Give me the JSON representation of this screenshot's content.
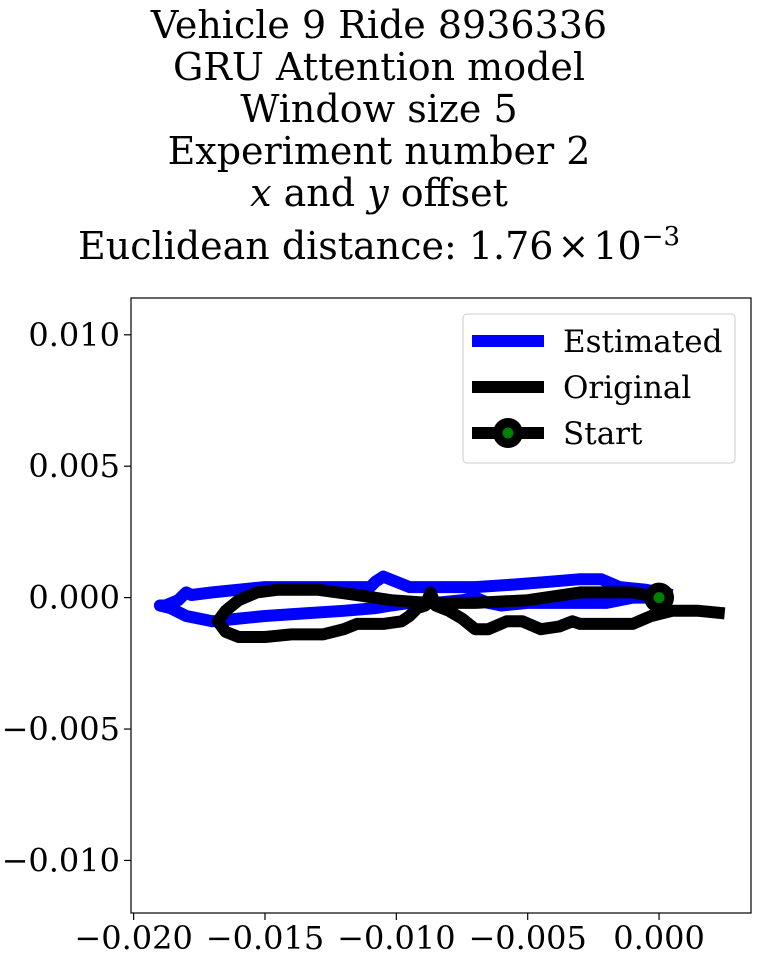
{
  "chart_data": {
    "type": "line",
    "title_lines": [
      "Vehicle 9 Ride 8936336",
      "GRU Attention model",
      "Window size 5",
      "Experiment number 2"
    ],
    "title_offset_line": {
      "x": "x",
      "and": " and ",
      "y": "y",
      "rest": " offset"
    },
    "title_distance": {
      "prefix": "Euclidean distance: ",
      "mantissa": "1.76",
      "times": "×",
      "base": "10",
      "exponent": "−3"
    },
    "xlabel": "",
    "ylabel": "",
    "xlim": [
      -0.0201,
      0.0035
    ],
    "ylim": [
      -0.012,
      0.0114
    ],
    "xticks": [
      -0.02,
      -0.015,
      -0.01,
      -0.005,
      0.0
    ],
    "xtick_labels": [
      "−0.020",
      "−0.015",
      "−0.010",
      "−0.005",
      "0.000"
    ],
    "yticks": [
      0.01,
      0.005,
      0.0,
      -0.005,
      -0.01
    ],
    "ytick_labels": [
      "0.010",
      "0.005",
      "0.000",
      "−0.005",
      "−0.010"
    ],
    "grid": false,
    "legend_position": "upper right",
    "series": [
      {
        "name": "Estimated",
        "color": "#0000ff",
        "points": [
          [
            0.0005,
            0.0001
          ],
          [
            -0.0005,
            0.0003
          ],
          [
            -0.0015,
            0.0004
          ],
          [
            -0.0022,
            0.0007
          ],
          [
            -0.003,
            0.0007
          ],
          [
            -0.0042,
            0.0006
          ],
          [
            -0.0055,
            0.0005
          ],
          [
            -0.007,
            0.0004
          ],
          [
            -0.009,
            0.0004
          ],
          [
            -0.0095,
            0.0004
          ],
          [
            -0.0105,
            0.0008
          ],
          [
            -0.0108,
            0.0006
          ],
          [
            -0.011,
            0.0004
          ],
          [
            -0.013,
            0.0004
          ],
          [
            -0.015,
            0.0004
          ],
          [
            -0.016,
            0.0003
          ],
          [
            -0.017,
            0.0002
          ],
          [
            -0.0178,
            0.0001
          ],
          [
            -0.018,
            0.0002
          ],
          [
            -0.0183,
            -0.0001
          ],
          [
            -0.0188,
            -0.0003
          ],
          [
            -0.019,
            -0.0003
          ],
          [
            -0.0186,
            -0.0004
          ],
          [
            -0.018,
            -0.0007
          ],
          [
            -0.017,
            -0.0009
          ],
          [
            -0.016,
            -0.0008
          ],
          [
            -0.015,
            -0.0007
          ],
          [
            -0.0135,
            -0.0006
          ],
          [
            -0.012,
            -0.0005
          ],
          [
            -0.0108,
            -0.0004
          ],
          [
            -0.0102,
            -0.0003
          ],
          [
            -0.0095,
            -0.0002
          ],
          [
            -0.0085,
            -0.0002
          ],
          [
            -0.0075,
            -0.0001
          ],
          [
            -0.007,
            0.0
          ],
          [
            -0.0065,
            -0.0002
          ],
          [
            -0.006,
            -0.0003
          ],
          [
            -0.005,
            -0.0002
          ],
          [
            -0.004,
            -0.0002
          ],
          [
            -0.003,
            -0.0002
          ],
          [
            -0.002,
            -0.0002
          ],
          [
            -0.001,
            0.0
          ],
          [
            0.0,
            0.0
          ],
          [
            0.0005,
            0.0001
          ]
        ]
      },
      {
        "name": "Original",
        "color": "#000000",
        "points": [
          [
            0.0025,
            -0.0006
          ],
          [
            0.0015,
            -0.0005
          ],
          [
            0.001,
            -0.0005
          ],
          [
            0.0005,
            -0.0005
          ],
          [
            -0.0003,
            -0.0007
          ],
          [
            -0.001,
            -0.001
          ],
          [
            -0.002,
            -0.001
          ],
          [
            -0.003,
            -0.001
          ],
          [
            -0.0033,
            -0.0009
          ],
          [
            -0.0038,
            -0.0011
          ],
          [
            -0.0045,
            -0.0012
          ],
          [
            -0.0052,
            -0.0009
          ],
          [
            -0.0058,
            -0.0009
          ],
          [
            -0.0065,
            -0.0012
          ],
          [
            -0.007,
            -0.0012
          ],
          [
            -0.0075,
            -0.0008
          ],
          [
            -0.008,
            -0.0005
          ],
          [
            -0.0085,
            -0.0003
          ],
          [
            -0.0087,
            0.0002
          ],
          [
            -0.0089,
            -0.0003
          ],
          [
            -0.0092,
            -0.0004
          ],
          [
            -0.0095,
            -0.0007
          ],
          [
            -0.0098,
            -0.0009
          ],
          [
            -0.0105,
            -0.001
          ],
          [
            -0.0115,
            -0.001
          ],
          [
            -0.012,
            -0.0012
          ],
          [
            -0.0128,
            -0.0014
          ],
          [
            -0.014,
            -0.0014
          ],
          [
            -0.015,
            -0.0015
          ],
          [
            -0.016,
            -0.0015
          ],
          [
            -0.0165,
            -0.0013
          ],
          [
            -0.0168,
            -0.0009
          ],
          [
            -0.0165,
            -0.0005
          ],
          [
            -0.016,
            -0.0001
          ],
          [
            -0.0153,
            0.0002
          ],
          [
            -0.0145,
            0.0003
          ],
          [
            -0.013,
            0.0003
          ],
          [
            -0.0115,
            0.0001
          ],
          [
            -0.0102,
            -0.0001
          ],
          [
            -0.0088,
            -0.0002
          ],
          [
            -0.007,
            -0.0002
          ],
          [
            -0.005,
            -0.0001
          ],
          [
            -0.003,
            0.0002
          ],
          [
            -0.002,
            0.0002
          ],
          [
            -0.001,
            0.0002
          ],
          [
            0.0,
            0.0
          ]
        ]
      }
    ],
    "start_marker": {
      "name": "Start",
      "x": 0.0,
      "y": 0.0,
      "fill": "#008000",
      "edge": "#000000"
    },
    "legend": [
      {
        "label": "Estimated",
        "color": "#0000ff",
        "marker": false
      },
      {
        "label": "Original",
        "color": "#000000",
        "marker": false
      },
      {
        "label": "Start",
        "color": "#000000",
        "marker": true,
        "marker_fill": "#008000"
      }
    ]
  }
}
